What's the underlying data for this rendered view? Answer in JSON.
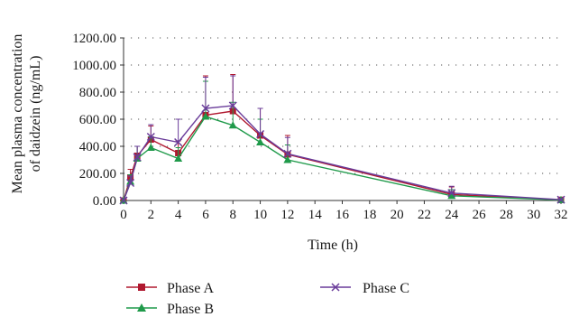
{
  "chart_data": {
    "type": "line",
    "xlabel": "Time (h)",
    "ylabel_lines": [
      "Mean plasma concentration",
      "of daidzein (ng/mL)"
    ],
    "xlim": [
      0,
      32
    ],
    "ylim": [
      0,
      1200
    ],
    "x_ticks": [
      "0",
      "2",
      "4",
      "6",
      "8",
      "10",
      "12",
      "14",
      "16",
      "18",
      "20",
      "22",
      "24",
      "26",
      "28",
      "30",
      "32"
    ],
    "y_ticks": [
      "0.00",
      "200.00",
      "400.00",
      "600.00",
      "800.00",
      "1000.00",
      "1200.00"
    ],
    "grid": "horizontal dotted",
    "legend_position": "bottom",
    "x": [
      0,
      0.5,
      1,
      2,
      4,
      6,
      8,
      10,
      12,
      24,
      32
    ],
    "series": [
      {
        "name": "Phase A",
        "color": "#b0182f",
        "marker": "square",
        "values": [
          0,
          170,
          330,
          450,
          350,
          630,
          660,
          480,
          340,
          45,
          5
        ],
        "error_upper": [
          0,
          60,
          70,
          100,
          90,
          290,
          270,
          200,
          140,
          55,
          8
        ]
      },
      {
        "name": "Phase B",
        "color": "#1f9a4a",
        "marker": "triangle",
        "values": [
          0,
          140,
          310,
          390,
          310,
          620,
          555,
          430,
          300,
          35,
          4
        ],
        "error_upper": [
          0,
          50,
          90,
          80,
          80,
          260,
          170,
          170,
          110,
          45,
          6
        ]
      },
      {
        "name": "Phase C",
        "color": "#6a3c9a",
        "marker": "x",
        "values": [
          0,
          130,
          320,
          470,
          430,
          680,
          700,
          490,
          345,
          55,
          6
        ],
        "error_upper": [
          0,
          50,
          80,
          90,
          170,
          230,
          220,
          190,
          120,
          50,
          8
        ]
      }
    ]
  }
}
